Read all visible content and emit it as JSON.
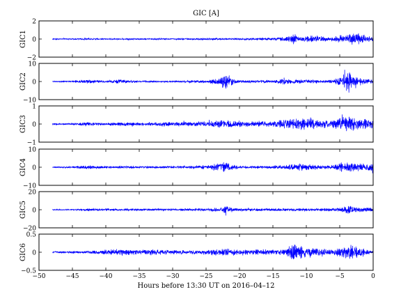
{
  "chart_data": {
    "type": "line",
    "title": "GIC [A]",
    "xlabel": "Hours before  13:30 UT on 2016–04–12",
    "xlim": [
      -50,
      0
    ],
    "xticks": [
      -50,
      -45,
      -40,
      -35,
      -30,
      -25,
      -20,
      -15,
      -10,
      -5,
      0
    ],
    "series": [
      {
        "ylabel": "GIC1",
        "ylim": [
          -2,
          2
        ],
        "yticks": [
          -2,
          0,
          2
        ],
        "x_start": -48,
        "color": "#0000ff",
        "envelope": [
          [
            -48,
            0.08
          ],
          [
            -45,
            0.08
          ],
          [
            -43,
            0.15
          ],
          [
            -40,
            0.08
          ],
          [
            -35,
            0.1
          ],
          [
            -30,
            0.1
          ],
          [
            -25,
            0.15
          ],
          [
            -20,
            0.12
          ],
          [
            -15,
            0.2
          ],
          [
            -13,
            0.3
          ],
          [
            -12,
            0.8
          ],
          [
            -11,
            0.4
          ],
          [
            -9,
            0.5
          ],
          [
            -8,
            0.4
          ],
          [
            -6,
            0.3
          ],
          [
            -5,
            0.6
          ],
          [
            -4,
            0.7
          ],
          [
            -3,
            0.9
          ],
          [
            -2,
            0.7
          ],
          [
            -1,
            0.5
          ],
          [
            0,
            0.3
          ]
        ]
      },
      {
        "ylabel": "GIC2",
        "ylim": [
          -10,
          10
        ],
        "yticks": [
          -10,
          0,
          10
        ],
        "x_start": -48,
        "color": "#0000ff",
        "envelope": [
          [
            -48,
            0.4
          ],
          [
            -45,
            0.5
          ],
          [
            -43,
            1.5
          ],
          [
            -40,
            0.6
          ],
          [
            -38,
            1.5
          ],
          [
            -35,
            0.6
          ],
          [
            -30,
            0.6
          ],
          [
            -25,
            1.0
          ],
          [
            -23,
            3
          ],
          [
            -22,
            6
          ],
          [
            -21,
            2.5
          ],
          [
            -20,
            1.0
          ],
          [
            -15,
            1.0
          ],
          [
            -13,
            2
          ],
          [
            -12,
            1.5
          ],
          [
            -10,
            1.5
          ],
          [
            -8,
            1.2
          ],
          [
            -6,
            1.5
          ],
          [
            -5,
            3
          ],
          [
            -4,
            7
          ],
          [
            -3.5,
            8
          ],
          [
            -3,
            4
          ],
          [
            -2,
            3
          ],
          [
            -1,
            2
          ],
          [
            0,
            1.5
          ]
        ]
      },
      {
        "ylabel": "GIC3",
        "ylim": [
          -1,
          1
        ],
        "yticks": [
          -1,
          0,
          1
        ],
        "x_start": -48,
        "color": "#0000ff",
        "envelope": [
          [
            -48,
            0.05
          ],
          [
            -45,
            0.06
          ],
          [
            -43,
            0.12
          ],
          [
            -40,
            0.08
          ],
          [
            -38,
            0.15
          ],
          [
            -35,
            0.12
          ],
          [
            -30,
            0.15
          ],
          [
            -25,
            0.18
          ],
          [
            -23,
            0.25
          ],
          [
            -22,
            0.3
          ],
          [
            -20,
            0.2
          ],
          [
            -15,
            0.2
          ],
          [
            -13,
            0.35
          ],
          [
            -12,
            0.45
          ],
          [
            -10,
            0.4
          ],
          [
            -9,
            0.45
          ],
          [
            -8,
            0.3
          ],
          [
            -6,
            0.3
          ],
          [
            -5,
            0.45
          ],
          [
            -4,
            0.6
          ],
          [
            -3,
            0.5
          ],
          [
            -2,
            0.45
          ],
          [
            -1,
            0.35
          ],
          [
            0,
            0.3
          ]
        ]
      },
      {
        "ylabel": "GIC4",
        "ylim": [
          -10,
          10
        ],
        "yticks": [
          -10,
          0,
          10
        ],
        "x_start": -48,
        "color": "#0000ff",
        "envelope": [
          [
            -48,
            0.4
          ],
          [
            -45,
            0.6
          ],
          [
            -43,
            1.5
          ],
          [
            -40,
            0.8
          ],
          [
            -35,
            0.8
          ],
          [
            -30,
            0.8
          ],
          [
            -25,
            1.5
          ],
          [
            -23,
            3
          ],
          [
            -22,
            4
          ],
          [
            -21,
            2
          ],
          [
            -20,
            1.0
          ],
          [
            -15,
            1.0
          ],
          [
            -13,
            1.5
          ],
          [
            -12,
            2.5
          ],
          [
            -10,
            2.5
          ],
          [
            -8,
            1.5
          ],
          [
            -6,
            1.5
          ],
          [
            -5,
            3
          ],
          [
            -4,
            4
          ],
          [
            -3,
            3
          ],
          [
            -2,
            2.5
          ],
          [
            -1,
            2
          ],
          [
            0,
            5
          ]
        ]
      },
      {
        "ylabel": "GIC5",
        "ylim": [
          -20,
          20
        ],
        "yticks": [
          -20,
          0,
          20
        ],
        "x_start": -48,
        "color": "#0000ff",
        "envelope": [
          [
            -48,
            0.8
          ],
          [
            -45,
            0.8
          ],
          [
            -43,
            2
          ],
          [
            -40,
            1.5
          ],
          [
            -35,
            1.5
          ],
          [
            -30,
            1.5
          ],
          [
            -25,
            2
          ],
          [
            -23,
            3
          ],
          [
            -22,
            6
          ],
          [
            -21,
            3
          ],
          [
            -20,
            2
          ],
          [
            -15,
            2
          ],
          [
            -13,
            2
          ],
          [
            -12,
            2
          ],
          [
            -10,
            2
          ],
          [
            -8,
            2
          ],
          [
            -6,
            2
          ],
          [
            -5,
            3
          ],
          [
            -4,
            6
          ],
          [
            -3.5,
            8
          ],
          [
            -3,
            4
          ],
          [
            -2,
            4
          ],
          [
            -1,
            3
          ],
          [
            0,
            3
          ]
        ]
      },
      {
        "ylabel": "GIC6",
        "ylim": [
          -0.5,
          0.5
        ],
        "yticks": [
          -0.5,
          0,
          0.5
        ],
        "x_start": -48,
        "color": "#0000ff",
        "envelope": [
          [
            -48,
            0.03
          ],
          [
            -45,
            0.04
          ],
          [
            -43,
            0.05
          ],
          [
            -40,
            0.08
          ],
          [
            -38,
            0.12
          ],
          [
            -35,
            0.08
          ],
          [
            -33,
            0.1
          ],
          [
            -30,
            0.08
          ],
          [
            -25,
            0.08
          ],
          [
            -23,
            0.12
          ],
          [
            -22,
            0.15
          ],
          [
            -20,
            0.08
          ],
          [
            -17,
            0.1
          ],
          [
            -15,
            0.08
          ],
          [
            -14,
            0.1
          ],
          [
            -13,
            0.15
          ],
          [
            -12,
            0.35
          ],
          [
            -11,
            0.25
          ],
          [
            -10,
            0.2
          ],
          [
            -8,
            0.15
          ],
          [
            -6,
            0.1
          ],
          [
            -5,
            0.2
          ],
          [
            -4,
            0.25
          ],
          [
            -3,
            0.25
          ],
          [
            -2,
            0.2
          ],
          [
            -1,
            0.1
          ],
          [
            0,
            0.06
          ]
        ]
      }
    ]
  }
}
